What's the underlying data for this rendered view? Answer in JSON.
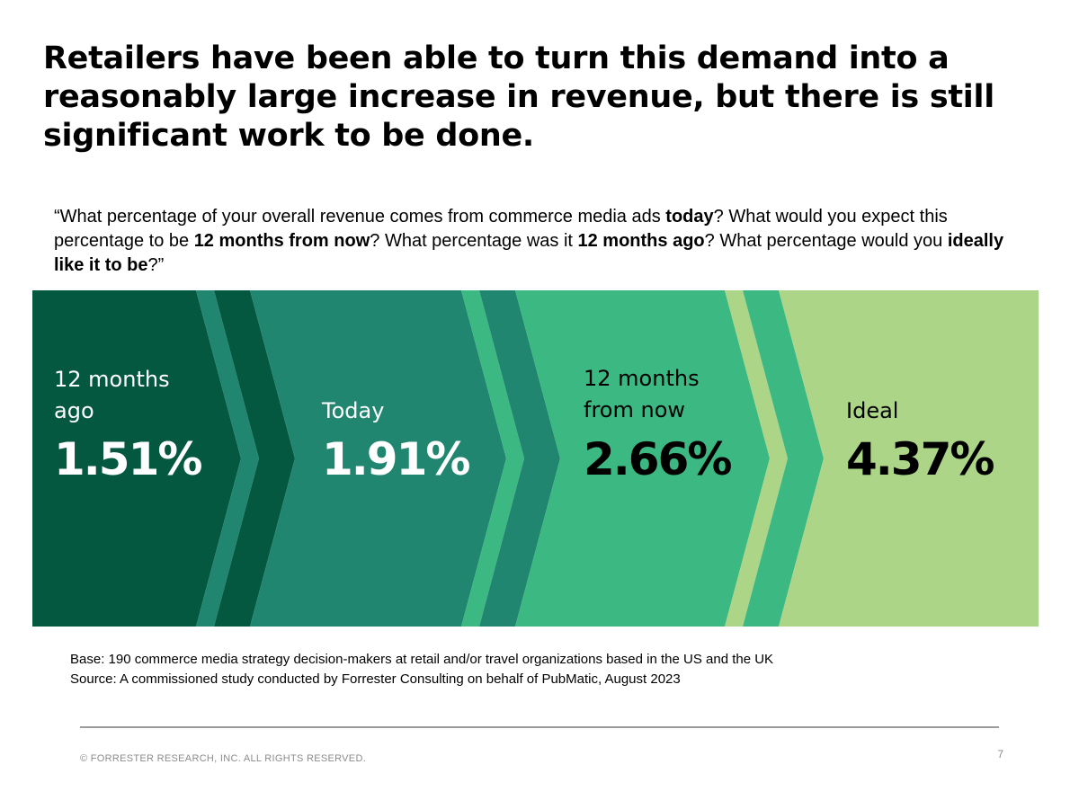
{
  "headline": "Retailers have been able to turn this demand into a reasonably large increase in revenue, but there is still significant work to be done.",
  "question": {
    "parts": [
      {
        "text": "“What percentage of your overall revenue comes from commerce media ads ",
        "bold": false
      },
      {
        "text": "today",
        "bold": true
      },
      {
        "text": "? What would you expect this percentage to be ",
        "bold": false
      },
      {
        "text": "12 months from now",
        "bold": true
      },
      {
        "text": "? What percentage was it ",
        "bold": false
      },
      {
        "text": "12 months ago",
        "bold": true
      },
      {
        "text": "? What percentage would you ",
        "bold": false
      },
      {
        "text": "ideally like it to be",
        "bold": true
      },
      {
        "text": "?”",
        "bold": false
      }
    ]
  },
  "chart_data": {
    "type": "table",
    "categories": [
      "12 months ago",
      "Today",
      "12 months from now",
      "Ideal"
    ],
    "values": [
      1.51,
      1.91,
      2.66,
      4.37
    ],
    "value_labels": [
      "1.51%",
      "1.91%",
      "2.66%",
      "4.37%"
    ],
    "label_lines": [
      [
        "12 months",
        "ago"
      ],
      [
        "Today"
      ],
      [
        "12 months",
        "from now"
      ],
      [
        "Ideal"
      ]
    ],
    "unit": "%",
    "colors": [
      "#045840",
      "#218670",
      "#3cb982",
      "#acd587"
    ],
    "text_colors": [
      "#ffffff",
      "#ffffff",
      "#000000",
      "#000000"
    ]
  },
  "notes": {
    "base": "Base: 190 commerce media strategy decision-makers at retail and/or travel organizations based in the US and the UK",
    "source": "Source: A commissioned study conducted by Forrester Consulting on behalf of PubMatic, August 2023"
  },
  "footer": {
    "copyright": "© FORRESTER RESEARCH, INC. ALL RIGHTS RESERVED.",
    "page_number": "7"
  }
}
